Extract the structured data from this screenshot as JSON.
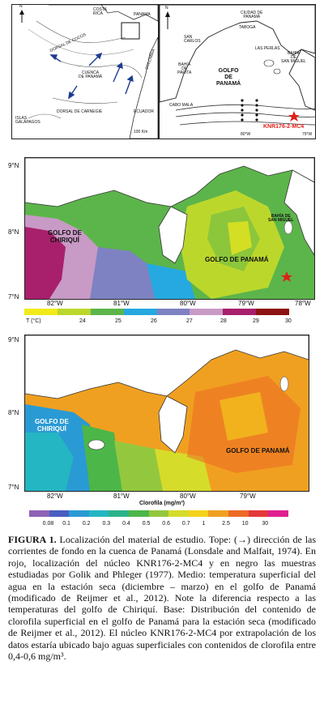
{
  "top_left_map": {
    "north": "N",
    "costa_rica": "COSTA\nRICA",
    "panama": "PANAMA",
    "cuenca": "CUENCA\nDE PANAMÁ",
    "dorsal_coco": "DORSAL DE COCOS",
    "dorsal_carnegie": "DORSAL DE CARNEGIE",
    "colombia": "COLOMBIA",
    "ecuador": "ECUADOR",
    "galapagos": "ISLAS\nGALÁPAGOS",
    "scale": "100 Km"
  },
  "top_right_map": {
    "north": "N",
    "ciudad": "CIUDAD DE\nPANAMÁ",
    "taboga": "TABOGA",
    "san_carlos": "SAN\nCARLOS",
    "las_perlas": "LAS PERLAS",
    "bahia_parita": "BAHÍA\nDE\nPARITA",
    "golfo": "GOLFO\nDE\nPANAMÁ",
    "bahia_sm": "BAHÍA\nDE\nSAN MIGUEL",
    "cabo_mala": "CABO MALA",
    "core": "KNR176-2-MC4",
    "lon1": "80°W",
    "lon2": "79°W"
  },
  "middle_map": {
    "lat_ticks": [
      "9°N",
      "8°N",
      "7°N"
    ],
    "lon_ticks": [
      "82°W",
      "81°W",
      "80°W",
      "79°W",
      "78°W"
    ],
    "golfo_chiriqui": "GOLFO DE\nCHIRIQUÍ",
    "golfo_panama": "GOLFO DE PANAMÁ",
    "bahia_sm": "BAHÍA DE\nSAN MIGUEL",
    "legend_title": "T (°C)",
    "legend_values": [
      "24",
      "25",
      "26",
      "27",
      "28",
      "29",
      "30"
    ],
    "legend_colors": [
      "#f2ea1a",
      "#bcd72c",
      "#5cb54a",
      "#26a9e0",
      "#7e82c2",
      "#c89ac6",
      "#a8206c",
      "#8d1212"
    ]
  },
  "bottom_map": {
    "lat_ticks": [
      "9°N",
      "8°N",
      "7°N"
    ],
    "lon_ticks": [
      "82°W",
      "81°W",
      "80°W",
      "79°W"
    ],
    "golfo_chiriqui": "GOLFO DE\nCHIRIQUÍ",
    "golfo_panama": "GOLFO DE PANAMÁ",
    "legend_title": "Clorofila (mg/m³)",
    "legend_values": [
      "0.08",
      "0.1",
      "0.2",
      "0.3",
      "0.4",
      "0.5",
      "0.6",
      "0.7",
      "1",
      "2.5",
      "10",
      "30"
    ],
    "legend_colors": [
      "#8e62b4",
      "#4a5ec2",
      "#2a9ad4",
      "#24b6c2",
      "#2bb28a",
      "#4cb648",
      "#93c83e",
      "#d6dc2a",
      "#f4d21c",
      "#f0a020",
      "#ec6a24",
      "#e43a3a",
      "#e0208e"
    ]
  },
  "caption": {
    "label": "FIGURA 1.",
    "text": "Localización del material de estudio. Tope: (→) dirección de las corrientes de fondo en la cuenca de Panamá (Lonsdale and Malfait, 1974). En rojo, localización del núcleo KNR176-2-MC4 y en negro las muestras estudiadas por Golik and Phleger (1977). Medio: temperatura superficial del agua en la estación seca (diciembre – marzo) en el golfo de Panamá (modificado de Reijmer et al., 2012). Note la diferencia respecto a las temperaturas del golfo de Chiriquí. Base: Distribución del contenido de clorofila superficial en el golfo de Panamá para la estación seca (modificado de Reijmer et al., 2012). El núcleo KNR176-2-MC4 por extrapolación de los datos estaría ubicado bajo aguas superficiales con contenidos de clorofila entre 0,4-0,6 mg/m³."
  }
}
